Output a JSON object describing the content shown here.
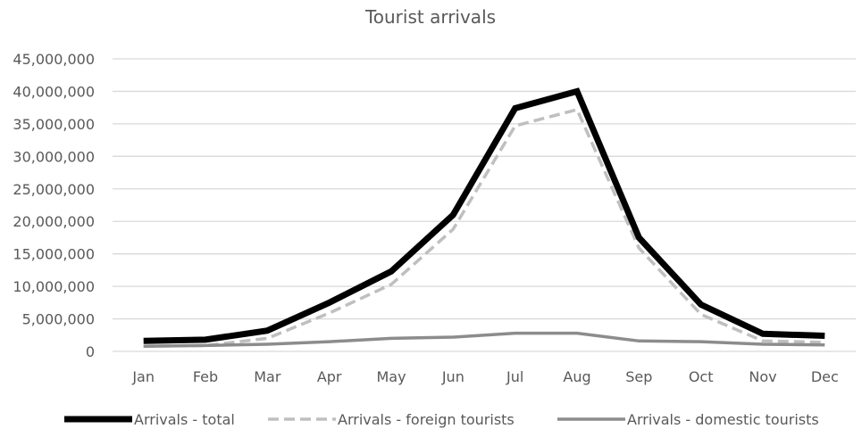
{
  "chart_data": {
    "type": "line",
    "title": "Tourist arrivals",
    "xlabel": "",
    "ylabel": "",
    "categories": [
      "Jan",
      "Feb",
      "Mar",
      "Apr",
      "May",
      "Jun",
      "Jul",
      "Aug",
      "Sep",
      "Oct",
      "Nov",
      "Dec"
    ],
    "ylim": [
      0,
      45000000
    ],
    "yticks": [
      0,
      5000000,
      10000000,
      15000000,
      20000000,
      25000000,
      30000000,
      35000000,
      40000000,
      45000000
    ],
    "ytick_labels": [
      "0",
      "5,000,000",
      "10,000,000",
      "15,000,000",
      "20,000,000",
      "25,000,000",
      "30,000,000",
      "35,000,000",
      "40,000,000",
      "45,000,000"
    ],
    "grid": true,
    "legend_position": "bottom",
    "series": [
      {
        "name": "Arrivals - total",
        "color": "#000000",
        "style": "solid",
        "values": [
          1600000,
          1800000,
          3200000,
          7500000,
          12300000,
          21000000,
          37400000,
          40000000,
          17500000,
          7200000,
          2700000,
          2400000
        ]
      },
      {
        "name": "Arrivals - foreign tourists",
        "color": "#bfbfbf",
        "style": "dashed",
        "values": [
          800000,
          900000,
          2000000,
          5900000,
          10300000,
          18800000,
          34700000,
          37200000,
          15900000,
          5700000,
          1600000,
          1400000
        ]
      },
      {
        "name": "Arrivals - domestic tourists",
        "color": "#8c8c8c",
        "style": "solid",
        "values": [
          800000,
          900000,
          1100000,
          1500000,
          2000000,
          2200000,
          2800000,
          2800000,
          1600000,
          1500000,
          1100000,
          1000000
        ]
      }
    ]
  }
}
